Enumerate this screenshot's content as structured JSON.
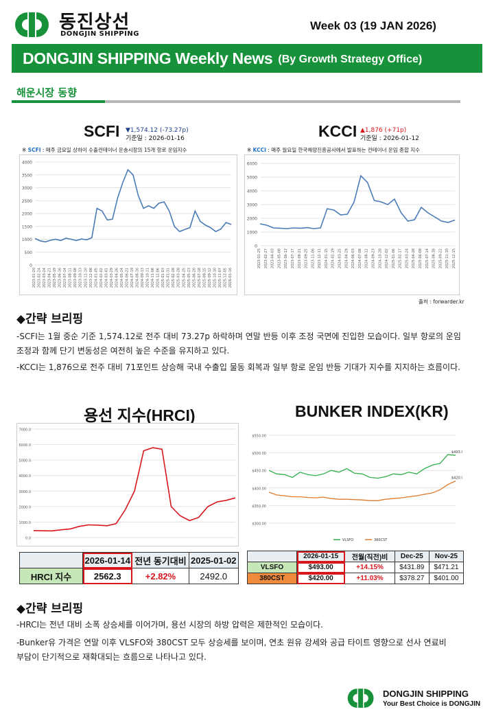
{
  "header": {
    "brand_kr": "동진상선",
    "brand_en": "DONGJIN SHIPPING",
    "week": "Week 03 (19 JAN 2026)"
  },
  "banner": {
    "title": "DONGJIN SHIPPING Weekly News",
    "subtitle": "(By Growth Strategy Office)"
  },
  "section1": {
    "title": "해운시장 동향"
  },
  "scfi": {
    "name": "SCFI",
    "change": "▼1,574.12 (-73.27p)",
    "date": "기준일 : 2026-01-16",
    "note_prefix": "※ ",
    "note_key": "SCFI",
    "note_text": " : 매주 금요일 상하이 수출컨테이너 운송시장의 15개 항로 운임지수"
  },
  "kcci": {
    "name": "KCCI",
    "change": "▲1,876 (+71p)",
    "date": "기준일 : 2026-01-12",
    "note_prefix": "※ ",
    "note_key": "KCCI",
    "note_text": " : 매주 월요일 한국해양진흥공사에서 발표하는 컨테이너 운임 종합 지수",
    "source": "출처 : forwarder.kr"
  },
  "brief1": {
    "heading": "◆간략 브리핑",
    "p1": "-SCFI는 1월 중순 기준 1,574.12로 전주 대비 73.27p 하락하며 연말 반등 이후 조정 국면에 진입한 모습이다. 일부 항로의 운임 조정과 함께 단기 변동성은 여전히 높은 수준을 유지하고 있다.",
    "p2": "-KCCI는 1,876으로 전주 대비 71포인트 상승해 국내 수출입 물동 회복과 일부 항로 운임 반등 기대가 지수를 지지하는 흐름이다."
  },
  "hrci": {
    "title": "용선 지수(HRCI)",
    "table": {
      "headers": [
        "",
        "2026-01-14",
        "전년 동기대비",
        "2025-01-02"
      ],
      "row": [
        "HRCI 지수",
        "2562.3",
        "+2.82%",
        "2492.0"
      ]
    }
  },
  "bunker": {
    "title": "BUNKER INDEX(KR)",
    "table": {
      "headers": [
        "",
        "2026-01-15",
        "전월(직전)비",
        "Dec-25",
        "Nov-25"
      ],
      "rows": [
        [
          "VLSFO",
          "$493.00",
          "+14.15%",
          "$431.89",
          "$471.21"
        ],
        [
          "380CST",
          "$420.00",
          "+11.03%",
          "$378.27",
          "$401.00"
        ]
      ]
    },
    "legend": [
      "VLSFO",
      "380CST"
    ],
    "end_labels": [
      "$493.00",
      "$420.00"
    ]
  },
  "brief2": {
    "heading": "◆간략 브리핑",
    "p1": "-HRCI는 전년 대비 소폭 상승세를 이어가며, 용선 시장의 하방 압력은 제한적인 모습이다.",
    "p2": "-Bunker유 가격은 연말 이후 VLSFO와 380CST 모두 상승세를 보이며, 연초 원유 강세와 공급 타이트 영향으로 선사 연료비 부담이 단기적으로 재확대되는 흐름으로 나타나고 있다."
  },
  "footer": {
    "brand": "DONGJIN SHIPPING",
    "tagline": "Your Best Choice is DONGJIN"
  },
  "chart_data": [
    {
      "type": "line",
      "id": "scfi",
      "ylim": [
        0,
        4000
      ],
      "yticks": [
        0,
        500,
        1000,
        1500,
        2000,
        2500,
        3000,
        3500,
        4000
      ],
      "x": [
        "2023-01-20",
        "2023-02-24",
        "2023-03-24",
        "2023-04-21",
        "2023-05-19",
        "2023-06-16",
        "2023-07-14",
        "2023-08-11",
        "2023-09-08",
        "2023-10-13",
        "2023-11-10",
        "2023-12-08",
        "2024-01-05",
        "2024-02-02",
        "2024-03-01",
        "2024-03-29",
        "2024-04-26",
        "2024-05-24",
        "2024-06-21",
        "2024-07-19",
        "2024-08-16",
        "2024-09-13",
        "2024-10-11",
        "2024-11-08",
        "2024-12-06",
        "2025-01-03",
        "2025-01-31",
        "2025-02-28",
        "2025-03-28",
        "2025-04-25",
        "2025-05-23",
        "2025-06-20",
        "2025-07-18",
        "2025-08-15",
        "2025-09-12",
        "2025-10-10",
        "2025-11-07",
        "2025-12-05",
        "2026-01-16"
      ],
      "xticks": [
        "2023-01-20",
        "2023-02-24",
        "2023-03-24",
        "2023-04-21",
        "2023-05-19",
        "2023-06-16",
        "2023-07-14",
        "2023-08-11",
        "2023-09-08",
        "2023-10-13",
        "2023-11-10",
        "2023-12-08",
        "2024-01-05",
        "2024-02-02",
        "2024-03-01",
        "2024-03-29",
        "2024-04-26",
        "2024-05-24",
        "2024-06-21",
        "2024-07-19",
        "2024-08-16",
        "2024-09-13",
        "2024-10-11",
        "2024-11-08",
        "2024-12-06",
        "2025-01-03",
        "2025-01-31",
        "2025-02-28",
        "2025-03-28",
        "2025-04-25",
        "2025-05-23",
        "2025-06-20",
        "2025-07-18",
        "2025-08-15",
        "2025-09-12",
        "2025-10-10",
        "2025-11-07",
        "2025-12-05",
        "2026-01-16"
      ],
      "values": [
        1030,
        940,
        900,
        960,
        1000,
        950,
        1040,
        1000,
        950,
        1010,
        980,
        1060,
        2200,
        2100,
        1750,
        1780,
        2600,
        3200,
        3700,
        3500,
        2700,
        2200,
        2300,
        2200,
        2400,
        2450,
        2100,
        1500,
        1300,
        1380,
        1450,
        2100,
        1700,
        1550,
        1450,
        1300,
        1400,
        1650,
        1574
      ]
    },
    {
      "type": "line",
      "id": "kcci",
      "ylim": [
        0,
        6000
      ],
      "yticks": [
        0,
        1000,
        2000,
        3000,
        4000,
        5000,
        6000
      ],
      "xticks": [
        "2023-01-25",
        "2023-02-27",
        "2023-04-03",
        "2023-05-08",
        "2023-06-12",
        "2023-07-17",
        "2023-08-21",
        "2023-09-25",
        "2023-11-06",
        "2023-12-11",
        "2024-01-15",
        "2024-02-19",
        "2024-03-25",
        "2024-04-29",
        "2024-06-03",
        "2024-07-08",
        "2024-08-12",
        "2024-09-23",
        "2024-10-28",
        "2024-12-02",
        "2025-01-06",
        "2025-02-17",
        "2025-03-24",
        "2025-04-28",
        "2025-06-09",
        "2025-07-14",
        "2025-08-18",
        "2025-09-22",
        "2025-11-10",
        "2025-12-15"
      ],
      "values": [
        1600,
        1500,
        1300,
        1280,
        1250,
        1300,
        1280,
        1320,
        1250,
        1300,
        2700,
        2600,
        2250,
        2300,
        3200,
        5100,
        4600,
        3300,
        3200,
        3000,
        3400,
        2400,
        1800,
        1900,
        2800,
        2400,
        2100,
        1800,
        1700,
        1876
      ]
    },
    {
      "type": "line",
      "id": "hrci",
      "ylim": [
        0,
        7000
      ],
      "yticks": [
        0,
        1000,
        2000,
        3000,
        4000,
        5000,
        6000,
        7000
      ],
      "values": [
        450,
        440,
        430,
        500,
        560,
        720,
        820,
        800,
        760,
        900,
        1800,
        3000,
        5600,
        5800,
        5700,
        2000,
        1400,
        1100,
        1300,
        2000,
        2300,
        2400,
        2560
      ]
    },
    {
      "type": "line",
      "id": "bunker",
      "ylim": [
        300,
        550
      ],
      "yticks": [
        300,
        350,
        400,
        450,
        500,
        550
      ],
      "series": [
        {
          "name": "VLSFO",
          "values": [
            450,
            440,
            438,
            430,
            445,
            438,
            435,
            440,
            450,
            445,
            455,
            442,
            440,
            430,
            428,
            432,
            440,
            438,
            445,
            440,
            455,
            465,
            470,
            495,
            493
          ]
        },
        {
          "name": "380CST",
          "values": [
            388,
            380,
            378,
            375,
            375,
            373,
            372,
            374,
            370,
            368,
            368,
            367,
            366,
            364,
            364,
            368,
            370,
            372,
            375,
            378,
            382,
            386,
            395,
            410,
            420
          ]
        }
      ]
    }
  ]
}
